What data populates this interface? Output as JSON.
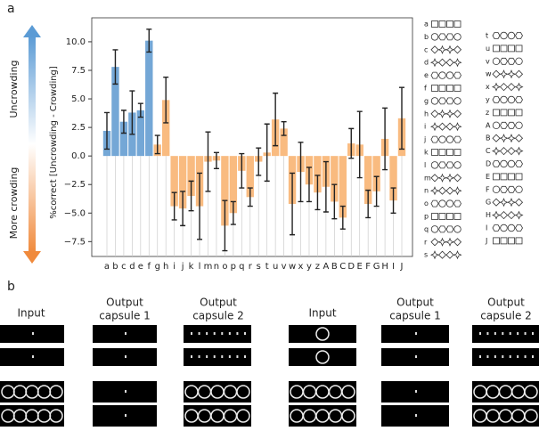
{
  "chart_data": {
    "type": "bar",
    "panel_label": "a",
    "ylabel": "%correct [Uncrowding - Crowding]",
    "arrow_top_label": "Uncrowding",
    "arrow_bottom_label": "More crowding",
    "categories": [
      "a",
      "b",
      "c",
      "d",
      "e",
      "f",
      "g",
      "h",
      "i",
      "j",
      "k",
      "l",
      "m",
      "n",
      "o",
      "p",
      "q",
      "r",
      "s",
      "t",
      "u",
      "v",
      "w",
      "x",
      "y",
      "z",
      "A",
      "B",
      "C",
      "D",
      "E",
      "F",
      "G",
      "H",
      "I",
      "J"
    ],
    "values": [
      2.2,
      7.8,
      3.0,
      3.8,
      4.0,
      10.1,
      1.0,
      4.9,
      -4.4,
      -4.6,
      -3.5,
      -4.4,
      -0.5,
      -0.4,
      -6.1,
      -5.0,
      -1.3,
      -3.6,
      -0.5,
      0.3,
      3.2,
      2.4,
      -4.2,
      -1.4,
      -2.5,
      -3.2,
      -2.7,
      -4.0,
      -5.4,
      1.1,
      1.0,
      -4.2,
      -3.1,
      1.5,
      -3.9,
      3.3
    ],
    "errors": [
      1.6,
      1.5,
      1.0,
      1.9,
      0.6,
      1.0,
      0.8,
      2.0,
      1.2,
      1.5,
      1.3,
      2.9,
      2.6,
      0.7,
      2.2,
      1.0,
      1.5,
      0.8,
      1.2,
      2.5,
      2.3,
      0.6,
      2.7,
      2.6,
      1.5,
      1.5,
      2.2,
      1.5,
      1.0,
      1.3,
      2.9,
      1.2,
      1.3,
      2.7,
      1.1,
      2.7
    ],
    "colors": [
      "#74a7d6",
      "#74a7d6",
      "#74a7d6",
      "#74a7d6",
      "#74a7d6",
      "#74a7d6",
      "#f9bb80",
      "#f9bb80",
      "#f9bb80",
      "#f9bb80",
      "#f9bb80",
      "#f9bb80",
      "#f9bb80",
      "#f9bb80",
      "#f9bb80",
      "#f9bb80",
      "#f9bb80",
      "#f9bb80",
      "#f9bb80",
      "#f9bb80",
      "#f9bb80",
      "#f9bb80",
      "#f9bb80",
      "#f9bb80",
      "#f9bb80",
      "#f9bb80",
      "#f9bb80",
      "#f9bb80",
      "#f9bb80",
      "#f9bb80",
      "#f9bb80",
      "#f9bb80",
      "#f9bb80",
      "#f9bb80",
      "#f9bb80",
      "#f9bb80"
    ],
    "ylim": [
      -8.8,
      12.1
    ],
    "yticks": [
      {
        "value": -7.5,
        "label": "−7.5"
      },
      {
        "value": -5.0,
        "label": "−5.0"
      },
      {
        "value": -2.5,
        "label": "−2.5"
      },
      {
        "value": 0.0,
        "label": "0.0"
      },
      {
        "value": 2.5,
        "label": "2.5"
      },
      {
        "value": 5.0,
        "label": "5.0"
      },
      {
        "value": 7.5,
        "label": "7.5"
      },
      {
        "value": 10.0,
        "label": "10.0"
      }
    ]
  },
  "panel_b": {
    "panel_label": "b",
    "columns": [
      [
        "Input"
      ],
      [
        "Output",
        "capsule 1"
      ],
      [
        "Output",
        "capsule 2"
      ]
    ]
  }
}
